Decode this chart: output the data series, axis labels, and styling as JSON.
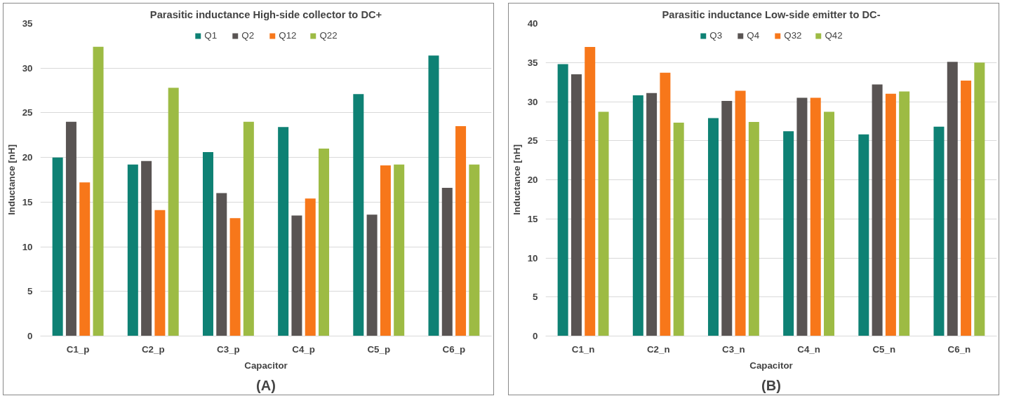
{
  "chart_data": [
    {
      "type": "bar",
      "title": "Parasitic inductance High-side collector to DC+",
      "xlabel": "Capacitor",
      "ylabel": "Inductance [nH]",
      "annotations": [
        "(A)"
      ],
      "categories": [
        "C1_p",
        "C2_p",
        "C3_p",
        "C4_p",
        "C5_p",
        "C6_p"
      ],
      "ylim": [
        0,
        35
      ],
      "yticks": [
        0,
        5,
        10,
        15,
        20,
        25,
        30,
        35
      ],
      "grid": "y",
      "legend": "top",
      "series": [
        {
          "name": "Q1",
          "color": "#0e8174",
          "values": [
            20.0,
            19.2,
            20.6,
            23.4,
            27.1,
            31.4
          ]
        },
        {
          "name": "Q2",
          "color": "#595453",
          "values": [
            24.0,
            19.6,
            16.0,
            13.5,
            13.6,
            16.6
          ]
        },
        {
          "name": "Q12",
          "color": "#f7771a",
          "values": [
            17.2,
            14.1,
            13.2,
            15.4,
            19.1,
            23.5
          ]
        },
        {
          "name": "Q22",
          "color": "#9dbb44",
          "values": [
            32.4,
            27.8,
            24.0,
            21.0,
            19.2,
            19.2
          ]
        }
      ]
    },
    {
      "type": "bar",
      "title": "Parasitic inductance Low-side emitter to DC-",
      "xlabel": "Capacitor",
      "ylabel": "Inductance [nH]",
      "annotations": [
        "(B)"
      ],
      "categories": [
        "C1_n",
        "C2_n",
        "C3_n",
        "C4_n",
        "C5_n",
        "C6_n"
      ],
      "ylim": [
        0,
        40
      ],
      "yticks": [
        0,
        5,
        10,
        15,
        20,
        25,
        30,
        35,
        40
      ],
      "grid": "y",
      "legend": "top",
      "series": [
        {
          "name": "Q3",
          "color": "#0e8174",
          "values": [
            34.8,
            30.8,
            27.9,
            26.2,
            25.8,
            26.8
          ]
        },
        {
          "name": "Q4",
          "color": "#595453",
          "values": [
            33.5,
            31.1,
            30.1,
            30.5,
            32.2,
            35.1
          ]
        },
        {
          "name": "Q32",
          "color": "#f7771a",
          "values": [
            37.0,
            33.7,
            31.4,
            30.5,
            31.0,
            32.7
          ]
        },
        {
          "name": "Q42",
          "color": "#9dbb44",
          "values": [
            28.7,
            27.3,
            27.4,
            28.7,
            31.3,
            35.0
          ]
        }
      ]
    }
  ]
}
